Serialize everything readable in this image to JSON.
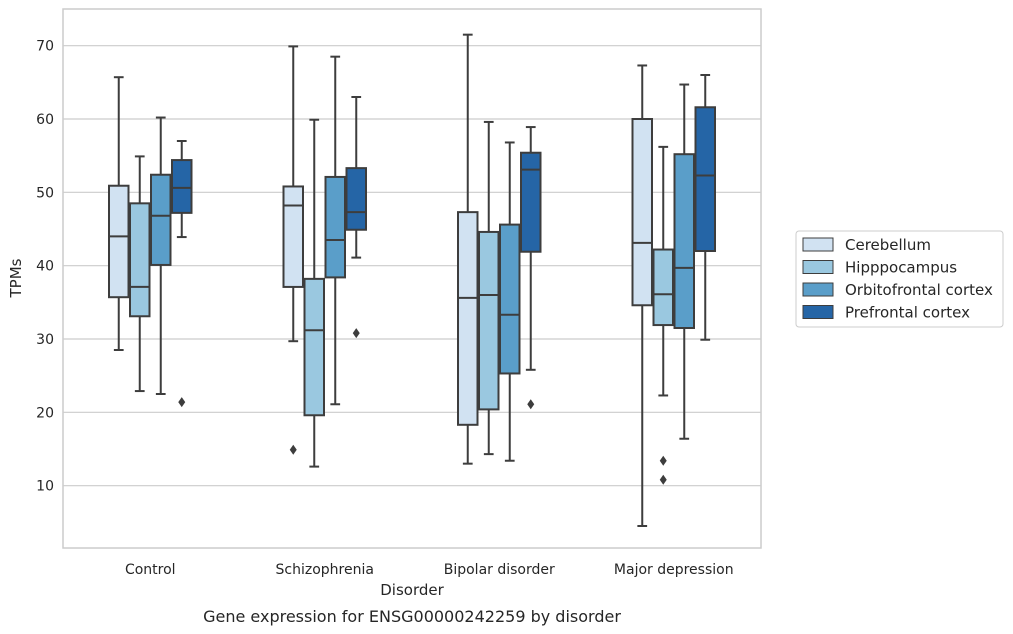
{
  "chart_data": {
    "type": "boxplot",
    "title": "Gene expression for ENSG00000242259 by disorder",
    "xlabel": "Disorder",
    "ylabel": "TPMs",
    "ylim": [
      1.5,
      75
    ],
    "yticks": [
      10,
      20,
      30,
      40,
      50,
      60,
      70
    ],
    "grid": true,
    "legend_position": "right",
    "categories": [
      "Control",
      "Schizophrenia",
      "Bipolar disorder",
      "Major depression"
    ],
    "series": [
      {
        "name": "Cerebellum",
        "color": "#d1e2f2",
        "boxes": [
          {
            "whislo": 28.5,
            "q1": 35.7,
            "med": 44.0,
            "q3": 50.9,
            "whishi": 65.7,
            "fliers": []
          },
          {
            "whislo": 29.7,
            "q1": 37.1,
            "med": 48.2,
            "q3": 50.8,
            "whishi": 69.9,
            "fliers": [
              14.9
            ]
          },
          {
            "whislo": 13.0,
            "q1": 18.3,
            "med": 35.6,
            "q3": 47.3,
            "whishi": 71.5,
            "fliers": []
          },
          {
            "whislo": 4.5,
            "q1": 34.6,
            "med": 43.1,
            "q3": 60.0,
            "whishi": 67.3,
            "fliers": []
          }
        ]
      },
      {
        "name": "Hipppocampus",
        "color": "#9ac8e0",
        "boxes": [
          {
            "whislo": 22.9,
            "q1": 33.1,
            "med": 37.1,
            "q3": 48.5,
            "whishi": 54.9,
            "fliers": []
          },
          {
            "whislo": 12.6,
            "q1": 19.6,
            "med": 31.2,
            "q3": 38.2,
            "whishi": 59.9,
            "fliers": []
          },
          {
            "whislo": 14.3,
            "q1": 20.4,
            "med": 36.0,
            "q3": 44.6,
            "whishi": 59.6,
            "fliers": []
          },
          {
            "whislo": 22.3,
            "q1": 31.9,
            "med": 36.1,
            "q3": 42.2,
            "whishi": 56.2,
            "fliers": [
              13.4,
              10.8
            ]
          }
        ]
      },
      {
        "name": "Orbitofrontal cortex",
        "color": "#5a9ec9",
        "boxes": [
          {
            "whislo": 22.5,
            "q1": 40.1,
            "med": 46.8,
            "q3": 52.4,
            "whishi": 60.2,
            "fliers": []
          },
          {
            "whislo": 21.1,
            "q1": 38.4,
            "med": 43.5,
            "q3": 52.1,
            "whishi": 68.5,
            "fliers": []
          },
          {
            "whislo": 13.4,
            "q1": 25.3,
            "med": 33.3,
            "q3": 45.6,
            "whishi": 56.8,
            "fliers": []
          },
          {
            "whislo": 16.4,
            "q1": 31.5,
            "med": 39.7,
            "q3": 55.2,
            "whishi": 64.7,
            "fliers": []
          }
        ]
      },
      {
        "name": "Prefrontal cortex",
        "color": "#2565a6",
        "boxes": [
          {
            "whislo": 43.9,
            "q1": 47.2,
            "med": 50.6,
            "q3": 54.4,
            "whishi": 57.0,
            "fliers": [
              21.4
            ]
          },
          {
            "whislo": 41.1,
            "q1": 44.9,
            "med": 47.3,
            "q3": 53.3,
            "whishi": 63.0,
            "fliers": [
              30.8
            ]
          },
          {
            "whislo": 25.8,
            "q1": 41.9,
            "med": 53.1,
            "q3": 55.4,
            "whishi": 58.9,
            "fliers": [
              21.1
            ]
          },
          {
            "whislo": 29.9,
            "q1": 42.0,
            "med": 52.3,
            "q3": 61.6,
            "whishi": 66.0,
            "fliers": []
          }
        ]
      }
    ]
  }
}
